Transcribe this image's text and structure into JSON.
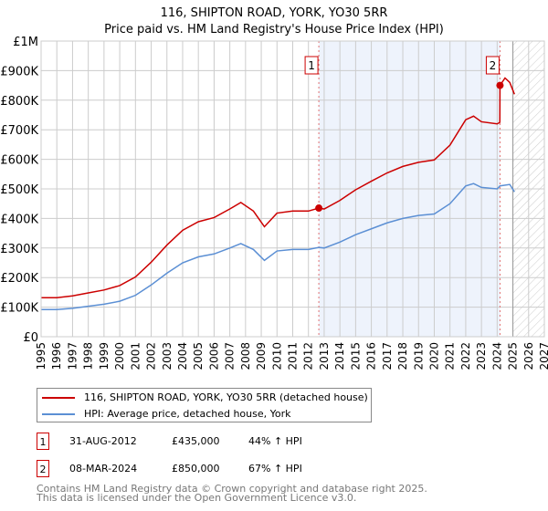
{
  "chart_data": {
    "type": "line",
    "title": "116, SHIPTON ROAD, YORK, YO30 5RR",
    "subtitle": "Price paid vs. HM Land Registry's House Price Index (HPI)",
    "xlim": [
      1995,
      2027
    ],
    "ylim": [
      0,
      1000000
    ],
    "x_ticks": [
      "1995",
      "1996",
      "1997",
      "1998",
      "1999",
      "2000",
      "2001",
      "2002",
      "2003",
      "2004",
      "2005",
      "2006",
      "2007",
      "2008",
      "2009",
      "2010",
      "2011",
      "2012",
      "2013",
      "2014",
      "2015",
      "2016",
      "2017",
      "2018",
      "2019",
      "2020",
      "2021",
      "2022",
      "2023",
      "2024",
      "2025",
      "2026",
      "2027"
    ],
    "y_ticks": [
      {
        "v": 0,
        "label": "£0"
      },
      {
        "v": 100000,
        "label": "£100K"
      },
      {
        "v": 200000,
        "label": "£200K"
      },
      {
        "v": 300000,
        "label": "£300K"
      },
      {
        "v": 400000,
        "label": "£400K"
      },
      {
        "v": 500000,
        "label": "£500K"
      },
      {
        "v": 600000,
        "label": "£600K"
      },
      {
        "v": 700000,
        "label": "£700K"
      },
      {
        "v": 800000,
        "label": "£800K"
      },
      {
        "v": 900000,
        "label": "£900K"
      },
      {
        "v": 1000000,
        "label": "£1M"
      }
    ],
    "grid": true,
    "series": [
      {
        "name": "116, SHIPTON ROAD, YORK, YO30 5RR (detached house)",
        "color": "#cc0000",
        "x": [
          1995,
          1996,
          1997,
          1998,
          1999,
          2000,
          2001,
          2002,
          2003,
          2004,
          2005,
          2006,
          2007,
          2007.7,
          2008.5,
          2009.2,
          2010,
          2011,
          2012,
          2012.66,
          2013,
          2014,
          2015,
          2016,
          2017,
          2018,
          2019,
          2020,
          2021,
          2022,
          2022.5,
          2023,
          2024,
          2024.17,
          2024.18,
          2024.5,
          2024.8,
          2025.1
        ],
        "y": [
          132000,
          132000,
          138000,
          148000,
          158000,
          173000,
          202000,
          252000,
          310000,
          360000,
          389000,
          403000,
          432000,
          454000,
          425000,
          372000,
          418000,
          425000,
          425000,
          435000,
          432000,
          461000,
          497000,
          526000,
          554000,
          576000,
          590000,
          598000,
          648000,
          734000,
          746000,
          727000,
          720000,
          725000,
          850000,
          875000,
          860000,
          820000
        ]
      },
      {
        "name": "HPI: Average price, detached house, York",
        "color": "#5b8fd4",
        "x": [
          1995,
          1996,
          1997,
          1998,
          1999,
          2000,
          2001,
          2002,
          2003,
          2004,
          2005,
          2006,
          2007,
          2007.7,
          2008.5,
          2009.2,
          2010,
          2011,
          2012,
          2012.66,
          2013,
          2014,
          2015,
          2016,
          2017,
          2018,
          2019,
          2020,
          2021,
          2022,
          2022.5,
          2023,
          2024,
          2024.18,
          2024.8,
          2025.1
        ],
        "y": [
          92000,
          92000,
          96000,
          103000,
          110000,
          120000,
          140000,
          175000,
          215000,
          250000,
          270000,
          280000,
          300000,
          315000,
          295000,
          258000,
          290000,
          295000,
          295000,
          302000,
          300000,
          320000,
          345000,
          365000,
          385000,
          400000,
          410000,
          415000,
          450000,
          510000,
          518000,
          505000,
          500000,
          510000,
          515000,
          490000
        ]
      }
    ],
    "sales": [
      {
        "label": "1",
        "x": 2012.66,
        "y": 435000
      },
      {
        "label": "2",
        "x": 2024.18,
        "y": 850000
      }
    ],
    "forecast_start": 2025.0
  },
  "table": [
    {
      "num": "1",
      "date": "31-AUG-2012",
      "price": "£435,000",
      "hpi": "44% ↑ HPI"
    },
    {
      "num": "2",
      "date": "08-MAR-2024",
      "price": "£850,000",
      "hpi": "67% ↑ HPI"
    }
  ],
  "footer": [
    "Contains HM Land Registry data © Crown copyright and database right 2025.",
    "This data is licensed under the Open Government Licence v3.0."
  ]
}
